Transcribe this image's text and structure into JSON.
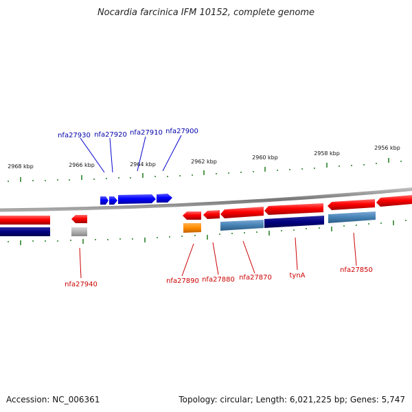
{
  "title": "Nocardia farcinica IFM 10152, complete genome",
  "footer": {
    "accession": "Accession: NC_006361",
    "topology": "Topology: circular; Length: 6,021,225 bp; Genes: 5,747"
  },
  "kbp_ticks": [
    "2968 kbp",
    "2966 kbp",
    "2964 kbp",
    "2962 kbp",
    "2960 kbp",
    "2958 kbp",
    "2956 kbp"
  ],
  "forward_genes": [
    {
      "id": "g1",
      "label": "nfa27930"
    },
    {
      "id": "g2",
      "label": "nfa27920"
    },
    {
      "id": "g3",
      "label": "nfa27910"
    },
    {
      "id": "g4",
      "label": "nfa27900"
    }
  ],
  "reverse_genes": [
    {
      "id": "r1",
      "label": "nfa27940"
    },
    {
      "id": "r2",
      "label": "nfa27890"
    },
    {
      "id": "r3",
      "label": "nfa27880"
    },
    {
      "id": "r4",
      "label": "nfa27870"
    },
    {
      "id": "r5",
      "label": "tynA"
    },
    {
      "id": "r6",
      "label": "nfa27850"
    }
  ],
  "colors": {
    "forward": "#0000ee",
    "reverse": "#ee0000",
    "cog_navy": "#000080",
    "cog_steel": "#4682b4",
    "cog_orange": "#ff8c00",
    "cog_gray": "#b0b0b0",
    "tick": "#1a7a1a",
    "backbone": "#888888",
    "label_forward": "#0000aa",
    "label_reverse": "#cc0000"
  }
}
